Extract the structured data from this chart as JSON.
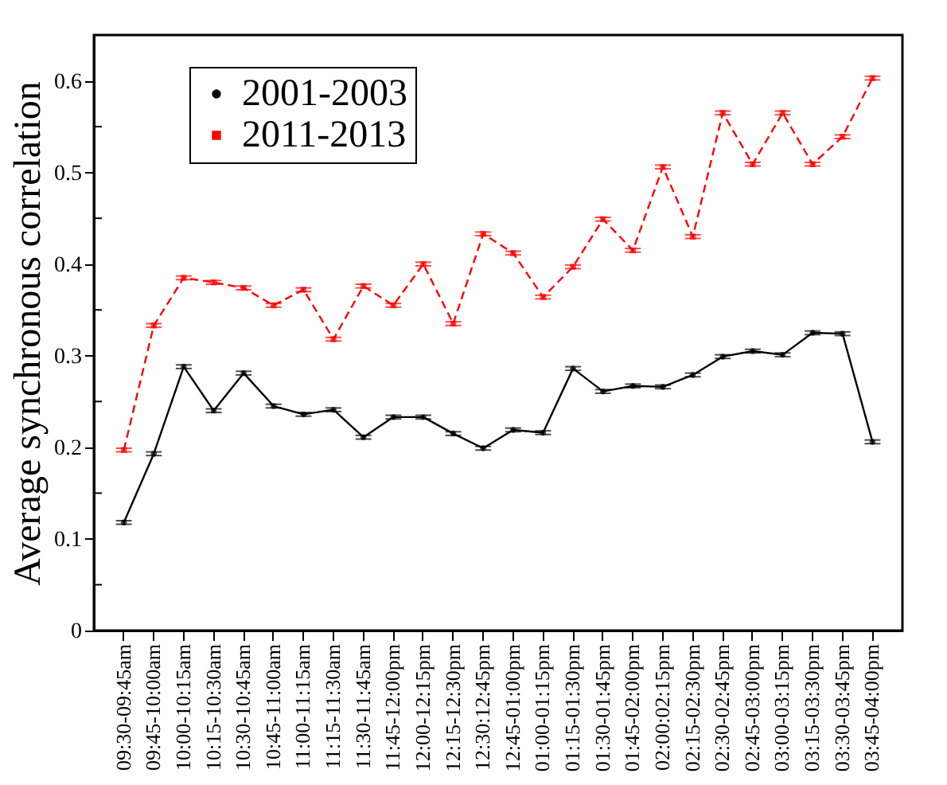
{
  "chart_data": {
    "type": "line",
    "ylabel": "Average synchronous correlation",
    "categories": [
      "09:30-09:45am",
      "09:45-10:00am",
      "10:00-10:15am",
      "10:15-10:30am",
      "10:30-10:45am",
      "10:45-11:00am",
      "11:00-11:15am",
      "11:15-11:30am",
      "11:30-11:45am",
      "11:45-12:00pm",
      "12:00-12:15pm",
      "12:15-12:30pm",
      "12:30:12:45pm",
      "12:45-01:00pm",
      "01:00-01:15pm",
      "01:15-01:30pm",
      "01:30-01:45pm",
      "01:45-02:00pm",
      "02:00:02:15pm",
      "02:15-02:30pm",
      "02:30-02:45pm",
      "02:45-03:00pm",
      "03:00-03:15pm",
      "03:15-03:30pm",
      "03:30-03:45pm",
      "03:45-04:00pm"
    ],
    "series": [
      {
        "name": "2001-2003",
        "color": "#000000",
        "marker": "circle",
        "line_style": "solid",
        "values": [
          0.118,
          0.193,
          0.288,
          0.24,
          0.281,
          0.245,
          0.236,
          0.241,
          0.211,
          0.233,
          0.233,
          0.215,
          0.199,
          0.219,
          0.216,
          0.286,
          0.261,
          0.267,
          0.266,
          0.279,
          0.299,
          0.305,
          0.301,
          0.325,
          0.324,
          0.206
        ],
        "errors": [
          0.002,
          0.002,
          0.002,
          0.002,
          0.002,
          0.002,
          0.002,
          0.002,
          0.002,
          0.002,
          0.002,
          0.002,
          0.002,
          0.002,
          0.002,
          0.002,
          0.002,
          0.002,
          0.002,
          0.002,
          0.002,
          0.002,
          0.002,
          0.002,
          0.002,
          0.002
        ]
      },
      {
        "name": "2011-2013",
        "color": "#ff0000",
        "marker": "square",
        "line_style": "dashed",
        "values": [
          0.197,
          0.333,
          0.385,
          0.38,
          0.374,
          0.355,
          0.372,
          0.318,
          0.376,
          0.355,
          0.4,
          0.335,
          0.433,
          0.412,
          0.364,
          0.397,
          0.449,
          0.415,
          0.506,
          0.43,
          0.565,
          0.509,
          0.565,
          0.509,
          0.539,
          0.603
        ],
        "errors": [
          0.002,
          0.002,
          0.002,
          0.002,
          0.002,
          0.002,
          0.002,
          0.002,
          0.002,
          0.002,
          0.002,
          0.002,
          0.002,
          0.002,
          0.002,
          0.002,
          0.002,
          0.002,
          0.002,
          0.002,
          0.002,
          0.002,
          0.002,
          0.002,
          0.002,
          0.002
        ]
      }
    ],
    "ylim": [
      0,
      0.65
    ],
    "yticks": [
      0,
      {
        "value": 0.05,
        "label": null
      },
      0.1,
      {
        "value": 0.15,
        "label": null
      },
      0.2,
      {
        "value": 0.25,
        "label": null
      },
      0.3,
      {
        "value": 0.35,
        "label": null
      },
      0.4,
      {
        "value": 0.45,
        "label": null
      },
      0.5,
      {
        "value": 0.55,
        "label": null
      },
      0.6
    ],
    "grid": false,
    "legend": "top left"
  }
}
